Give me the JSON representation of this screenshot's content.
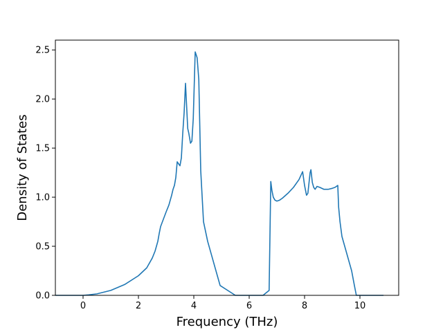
{
  "chart_data": {
    "type": "line",
    "title": "",
    "xlabel": "Frequency (THz)",
    "ylabel": "Density of States",
    "xlim": [
      -1.0,
      11.4
    ],
    "ylim": [
      0.0,
      2.6
    ],
    "xticks": [
      0,
      2,
      4,
      6,
      8,
      10
    ],
    "yticks": [
      0.0,
      0.5,
      1.0,
      1.5,
      2.0,
      2.5
    ],
    "xtick_labels": [
      "0",
      "2",
      "4",
      "6",
      "8",
      "10"
    ],
    "ytick_labels": [
      "0.0",
      "0.5",
      "1.0",
      "1.5",
      "2.0",
      "2.5"
    ],
    "grid": false,
    "legend": "none",
    "colors": {
      "line": "#1f77b4",
      "axes": "#000000",
      "background": "#ffffff"
    },
    "series": [
      {
        "x": [
          -1.0,
          0.0,
          0.2,
          0.5,
          1.0,
          1.5,
          2.0,
          2.3,
          2.5,
          2.6,
          2.7,
          2.75,
          2.8,
          3.0,
          3.1,
          3.15,
          3.2,
          3.25,
          3.3,
          3.35,
          3.4,
          3.5,
          3.55,
          3.6,
          3.65,
          3.7,
          3.78,
          3.82,
          3.88,
          3.93,
          3.98,
          4.05,
          4.12,
          4.18,
          4.25,
          4.35,
          4.5,
          4.7,
          4.85,
          4.95,
          5.5,
          6.0,
          6.5,
          6.72,
          6.78,
          6.82,
          6.87,
          6.93,
          7.0,
          7.1,
          7.2,
          7.4,
          7.6,
          7.8,
          7.93,
          8.0,
          8.07,
          8.12,
          8.2,
          8.23,
          8.28,
          8.33,
          8.38,
          8.45,
          8.55,
          8.7,
          8.85,
          9.0,
          9.1,
          9.2,
          9.23,
          9.28,
          9.35,
          9.5,
          9.7,
          9.8,
          9.87,
          10.5,
          10.85
        ],
        "y": [
          0.0,
          0.0,
          0.005,
          0.015,
          0.05,
          0.11,
          0.2,
          0.28,
          0.38,
          0.45,
          0.55,
          0.63,
          0.7,
          0.85,
          0.92,
          0.97,
          1.02,
          1.08,
          1.12,
          1.2,
          1.36,
          1.32,
          1.4,
          1.65,
          1.86,
          2.16,
          1.7,
          1.65,
          1.55,
          1.57,
          1.8,
          2.48,
          2.42,
          2.2,
          1.27,
          0.75,
          0.55,
          0.35,
          0.2,
          0.1,
          0.0,
          0.0,
          0.0,
          0.05,
          1.16,
          1.07,
          1.0,
          0.97,
          0.96,
          0.97,
          0.99,
          1.04,
          1.1,
          1.18,
          1.26,
          1.12,
          1.02,
          1.04,
          1.25,
          1.28,
          1.15,
          1.1,
          1.08,
          1.11,
          1.1,
          1.08,
          1.08,
          1.09,
          1.1,
          1.12,
          0.9,
          0.75,
          0.6,
          0.45,
          0.25,
          0.1,
          0.0,
          0.0,
          0.0
        ]
      }
    ]
  }
}
